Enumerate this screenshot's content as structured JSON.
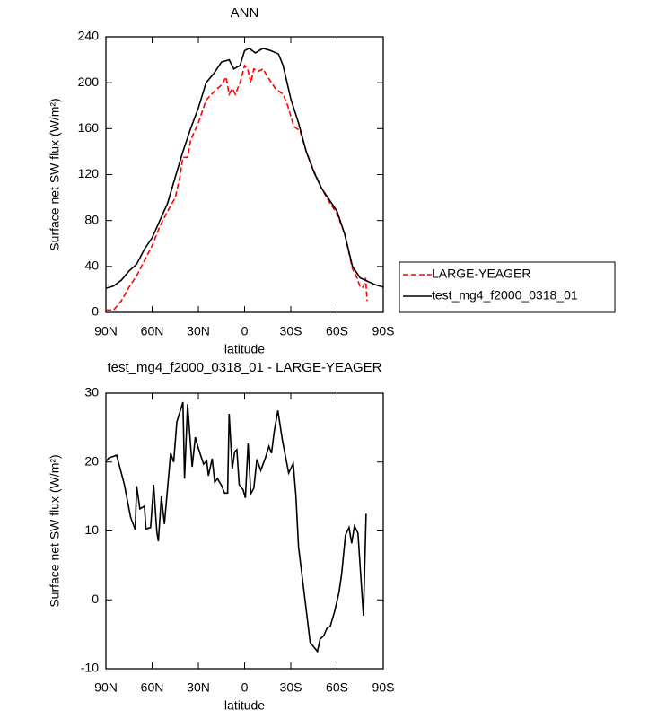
{
  "chart_data": [
    {
      "type": "line",
      "title": "ANN",
      "xlabel": "latitude",
      "ylabel": "Surface net SW flux (W/m²)",
      "xlim": [
        90,
        -90
      ],
      "xticks": [
        {
          "value": 90,
          "label": "90N"
        },
        {
          "value": 60,
          "label": "60N"
        },
        {
          "value": 30,
          "label": "30N"
        },
        0,
        {
          "value": -30,
          "label": "30S"
        },
        {
          "value": -60,
          "label": "60S"
        },
        {
          "value": -90,
          "label": "90S"
        }
      ],
      "ylim": [
        0,
        240
      ],
      "yticks": [
        0,
        40,
        80,
        120,
        160,
        200,
        240
      ],
      "legend": "outside-right",
      "series": [
        {
          "name": "LARGE-YEAGER",
          "color": "#ff0000",
          "dash": "dashed",
          "x": [
            90,
            85,
            80,
            75,
            70,
            65,
            60,
            55,
            50,
            45,
            42,
            40,
            37,
            35,
            30,
            25,
            20,
            15,
            12,
            10,
            8,
            6,
            3,
            0,
            -2,
            -4,
            -6,
            -9,
            -12,
            -15,
            -20,
            -25,
            -28,
            -32,
            -36,
            -40,
            -45,
            -50,
            -55,
            -60,
            -65,
            -70,
            -73,
            -75,
            -77,
            -78.5,
            -79.5
          ],
          "values": [
            2,
            2,
            10,
            22,
            32,
            45,
            58,
            75,
            88,
            100,
            118,
            135,
            135,
            150,
            165,
            185,
            192,
            198,
            205,
            190,
            195,
            190,
            200,
            215,
            212,
            200,
            212,
            210,
            212,
            205,
            195,
            190,
            180,
            162,
            158,
            140,
            123,
            108,
            96,
            86,
            68,
            38,
            30,
            22,
            22,
            30,
            10
          ]
        },
        {
          "name": "test_mg4_f2000_0318_01",
          "color": "#000000",
          "dash": "solid",
          "x": [
            90,
            85,
            80,
            75,
            70,
            65,
            60,
            55,
            50,
            45,
            40,
            35,
            30,
            25,
            20,
            15,
            10,
            7,
            3,
            0,
            -3,
            -7,
            -12,
            -17,
            -22,
            -25,
            -30,
            -35,
            -40,
            -45,
            -50,
            -55,
            -60,
            -65,
            -70,
            -75,
            -80,
            -85,
            -90
          ],
          "values": [
            21,
            23,
            28,
            36,
            42,
            55,
            65,
            80,
            95,
            118,
            140,
            160,
            178,
            200,
            208,
            218,
            220,
            212,
            215,
            228,
            230,
            226,
            230,
            228,
            225,
            215,
            186,
            165,
            140,
            122,
            108,
            98,
            88,
            68,
            40,
            30,
            27,
            24,
            22
          ]
        }
      ]
    },
    {
      "type": "line",
      "title": "test_mg4_f2000_0318_01 - LARGE-YEAGER",
      "xlabel": "latitude",
      "ylabel": "Surface net SW flux (W/m²)",
      "xlim": [
        90,
        -90
      ],
      "xticks": [
        {
          "value": 90,
          "label": "90N"
        },
        {
          "value": 60,
          "label": "60N"
        },
        {
          "value": 30,
          "label": "30N"
        },
        0,
        {
          "value": -30,
          "label": "30S"
        },
        {
          "value": -60,
          "label": "60S"
        },
        {
          "value": -90,
          "label": "90S"
        }
      ],
      "ylim": [
        -10,
        30
      ],
      "yticks": [
        -10,
        0,
        10,
        20,
        30
      ],
      "series": [
        {
          "color": "#000000",
          "dash": "solid",
          "x": [
            90,
            88,
            83,
            78,
            74,
            71,
            70,
            68,
            65,
            64,
            61,
            59,
            57,
            56,
            54,
            52,
            48,
            46,
            44,
            40,
            39,
            37,
            34,
            32,
            30,
            26.6,
            24.6,
            23.5,
            21,
            19.4,
            17.6,
            15,
            13,
            11,
            10,
            8,
            6.4,
            5,
            3.5,
            1,
            -0.5,
            -2.3,
            -4,
            -6,
            -8,
            -10.5,
            -13.5,
            -15.8,
            -17.5,
            -19.3,
            -21.6,
            -24.5,
            -28.6,
            -31.6,
            -33.3,
            -35,
            -38.6,
            -42.6,
            -47.3,
            -49,
            -51.4,
            -53.7,
            -55.5,
            -58.4,
            -61.3,
            -63,
            -65.5,
            -67.8,
            -69.5,
            -71.3,
            -73.6,
            -77.1,
            -78.9
          ],
          "values": [
            20.1,
            20.6,
            21,
            16.7,
            12,
            10.2,
            16.5,
            13.2,
            13.6,
            10.3,
            10.5,
            16.7,
            9.9,
            8.5,
            15,
            11,
            21.3,
            20,
            25.8,
            28.7,
            17.6,
            28.4,
            19.3,
            23.6,
            22,
            19.7,
            20.2,
            18,
            20.5,
            17.1,
            17.6,
            16.6,
            15.5,
            15.5,
            27,
            19,
            21.5,
            21.8,
            16.7,
            16,
            14.8,
            22.7,
            15.4,
            16.2,
            20.4,
            18.8,
            20.6,
            22.3,
            21.3,
            24.5,
            27.5,
            23.2,
            18.4,
            19.8,
            15.1,
            7.7,
            1.1,
            -6.2,
            -7.5,
            -5.7,
            -5.2,
            -4,
            -3.9,
            -1.7,
            1.1,
            3.7,
            9.4,
            10.5,
            8.2,
            10.7,
            9.7,
            -2.3,
            12.5
          ]
        }
      ]
    }
  ]
}
